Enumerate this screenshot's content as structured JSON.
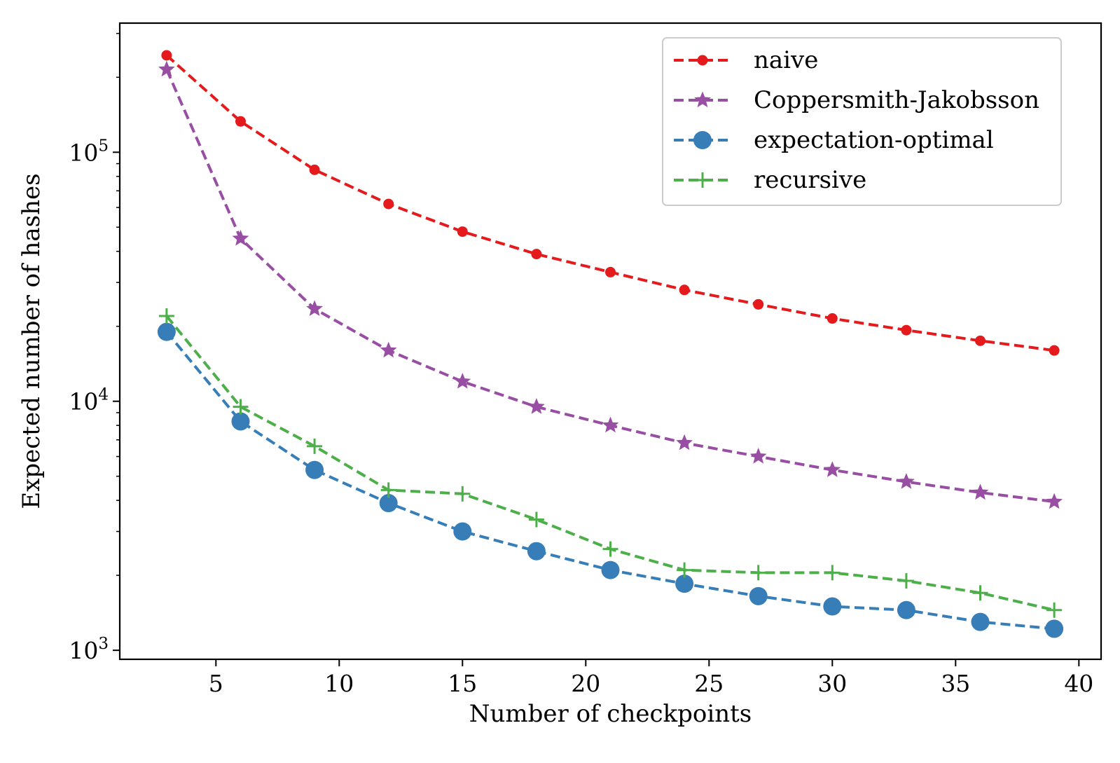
{
  "chart_data": {
    "type": "line",
    "title": "",
    "xlabel": "Number of checkpoints",
    "ylabel": "Expected number of hashes",
    "xscale": "linear",
    "yscale": "log",
    "xlim": [
      1.1,
      40.9
    ],
    "ylim": [
      920,
      330000
    ],
    "grid": false,
    "legend_position": "top-right",
    "xticks": [
      5,
      10,
      15,
      20,
      25,
      30,
      35,
      40
    ],
    "xtick_labels": [
      "5",
      "10",
      "15",
      "20",
      "25",
      "30",
      "35",
      "40"
    ],
    "yticks": [
      1000,
      10000,
      100000
    ],
    "ytick_labels": [
      {
        "base": "10",
        "exp": "3"
      },
      {
        "base": "10",
        "exp": "4"
      },
      {
        "base": "10",
        "exp": "5"
      }
    ],
    "x": [
      3,
      6,
      9,
      12,
      15,
      18,
      21,
      24,
      27,
      30,
      33,
      36,
      39
    ],
    "series": [
      {
        "name": "naive",
        "color": "#e41a1c",
        "marker": "dot",
        "linestyle": "dashed",
        "values": [
          245000,
          133000,
          85000,
          62000,
          48000,
          39000,
          33000,
          28000,
          24500,
          21500,
          19300,
          17500,
          16000
        ]
      },
      {
        "name": "Coppersmith-Jakobsson",
        "color": "#984ea3",
        "marker": "star",
        "linestyle": "dashed",
        "values": [
          215000,
          45000,
          23500,
          16000,
          12000,
          9500,
          8000,
          6800,
          6000,
          5300,
          4750,
          4300,
          3950
        ]
      },
      {
        "name": "expectation-optimal",
        "color": "#377eb8",
        "marker": "circle",
        "linestyle": "dashed",
        "values": [
          19000,
          8300,
          5300,
          3900,
          3000,
          2500,
          2100,
          1850,
          1650,
          1500,
          1450,
          1300,
          1220
        ]
      },
      {
        "name": "recursive",
        "color": "#4daf4a",
        "marker": "plus",
        "linestyle": "dashed",
        "values": [
          22000,
          9500,
          6600,
          4400,
          4250,
          3350,
          2550,
          2100,
          2050,
          2050,
          1900,
          1700,
          1450
        ]
      }
    ]
  }
}
